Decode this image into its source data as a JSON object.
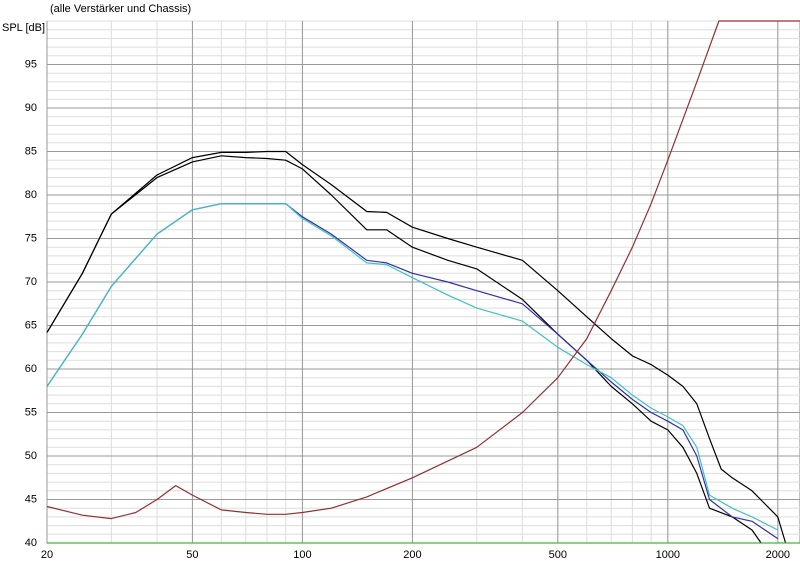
{
  "chart_data": {
    "type": "line",
    "title": "(alle Verstärker und Chassis)",
    "y_label": "SPL [dB]",
    "xlog": true,
    "xlim": [
      20,
      2300
    ],
    "xticks": [
      20,
      50,
      100,
      200,
      500,
      1000,
      2000
    ],
    "ylim": [
      40,
      100
    ],
    "yticks": [
      40,
      45,
      50,
      55,
      60,
      65,
      70,
      75,
      80,
      85,
      90,
      95
    ],
    "grid": true,
    "series": [
      {
        "color": "#000000",
        "x": [
          20,
          25,
          30,
          40,
          50,
          60,
          70,
          80,
          90,
          100,
          120,
          150,
          170,
          200,
          250,
          300,
          400,
          500,
          600,
          700,
          800,
          900,
          1000,
          1100,
          1200,
          1300,
          1400,
          1500,
          1700,
          2000,
          2100
        ],
        "values": [
          64.2,
          71,
          77.8,
          82.3,
          84.3,
          84.9,
          84.9,
          85,
          85,
          83.5,
          81.2,
          78.1,
          78,
          76.3,
          75,
          74,
          72.5,
          69,
          66,
          63.5,
          61.5,
          60.5,
          59.3,
          58,
          56,
          52,
          48.5,
          47.5,
          46,
          43,
          40
        ]
      },
      {
        "color": "#000000",
        "x": [
          20,
          25,
          30,
          40,
          50,
          60,
          70,
          80,
          90,
          100,
          120,
          150,
          170,
          200,
          250,
          300,
          400,
          500,
          600,
          700,
          800,
          900,
          1000,
          1100,
          1200,
          1300,
          1500,
          1700,
          1800
        ],
        "values": [
          64.2,
          71,
          77.8,
          82,
          83.8,
          84.5,
          84.3,
          84.2,
          84,
          83,
          80,
          76,
          76,
          74,
          72.5,
          71.5,
          68,
          64,
          61,
          58,
          56,
          54,
          53,
          51,
          48,
          44,
          43,
          41.5,
          40
        ]
      },
      {
        "color": "#3030b0",
        "x": [
          20,
          25,
          30,
          40,
          50,
          60,
          70,
          80,
          90,
          100,
          120,
          150,
          170,
          200,
          250,
          300,
          400,
          500,
          600,
          700,
          800,
          900,
          1000,
          1100,
          1200,
          1300,
          1500,
          1700,
          2000
        ],
        "values": [
          58,
          64,
          69.5,
          75.5,
          78.3,
          79,
          79,
          79,
          79,
          77.5,
          75.5,
          72.5,
          72.2,
          71,
          70,
          69,
          67.5,
          64,
          61,
          58.5,
          56.5,
          55,
          54,
          53,
          50,
          45,
          43,
          42.5,
          40.5
        ]
      },
      {
        "color": "#40c0c0",
        "x": [
          20,
          25,
          30,
          40,
          50,
          60,
          70,
          80,
          90,
          100,
          120,
          150,
          170,
          200,
          250,
          300,
          400,
          500,
          600,
          700,
          800,
          900,
          1000,
          1100,
          1200,
          1300,
          1500,
          1700,
          2000
        ],
        "values": [
          58,
          64,
          69.5,
          75.5,
          78.3,
          79,
          79,
          79,
          79,
          77.3,
          75.3,
          72.2,
          72,
          70.5,
          68.5,
          67,
          65.5,
          62.5,
          60.5,
          59,
          57,
          55.5,
          54.5,
          53.5,
          51,
          45.5,
          44,
          43,
          41.5
        ]
      },
      {
        "color": "#903030",
        "x": [
          20,
          25,
          30,
          35,
          40,
          45,
          50,
          60,
          70,
          80,
          90,
          100,
          120,
          150,
          200,
          300,
          400,
          500,
          600,
          700,
          800,
          900,
          1000,
          1200,
          1380,
          2300
        ],
        "values": [
          44.2,
          43.2,
          42.8,
          43.5,
          45,
          46.6,
          45.5,
          43.8,
          43.5,
          43.3,
          43.3,
          43.5,
          44,
          45.3,
          47.5,
          51,
          55,
          59,
          63.5,
          69,
          74,
          79,
          84,
          93,
          100,
          100
        ]
      },
      {
        "color": "#30c030",
        "x": [
          20,
          2300
        ],
        "values": [
          40,
          40
        ]
      }
    ]
  }
}
